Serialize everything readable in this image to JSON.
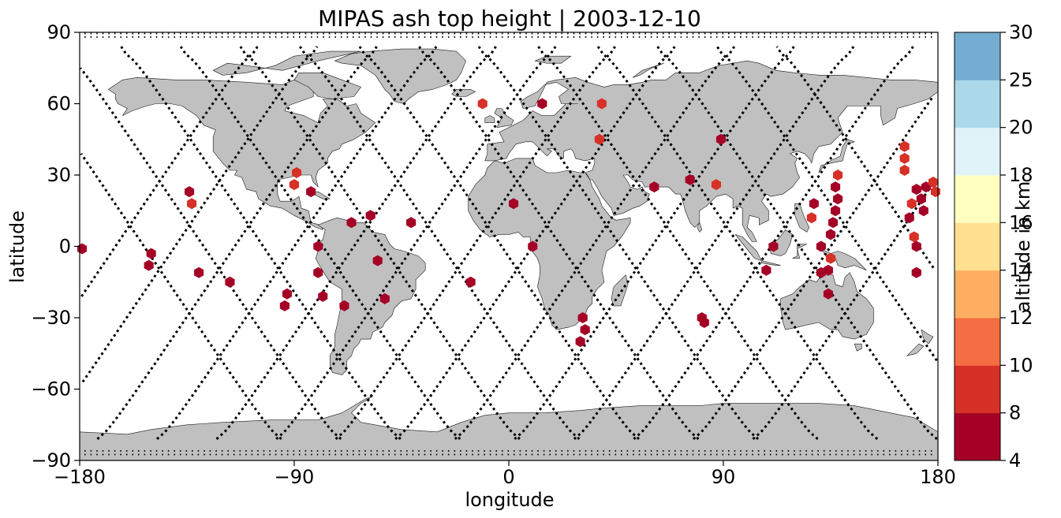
{
  "chart_data": {
    "type": "scatter",
    "title": "MIPAS ash top height | 2003-12-10",
    "xlabel": "longitude",
    "ylabel": "latitude",
    "xlim": [
      -180,
      180
    ],
    "ylim": [
      -90,
      90
    ],
    "xticks": [
      -180,
      -90,
      0,
      90,
      180
    ],
    "yticks": [
      -90,
      -60,
      -30,
      0,
      30,
      60,
      90
    ],
    "xtick_labels": [
      "−180",
      "−90",
      "0",
      "90",
      "180"
    ],
    "ytick_labels": [
      "−90",
      "−60",
      "−30",
      "0",
      "30",
      "60",
      "90"
    ],
    "grid": false,
    "background_map": "world land outlines (grey)",
    "colors": {
      "land": "#c0c0c0",
      "coast": "#1a1a1a",
      "track": "#000000"
    },
    "colorbar": {
      "label": "altitude in km",
      "bounds": [
        4,
        8,
        10,
        12,
        14,
        16,
        18,
        20,
        25,
        30
      ],
      "tick_labels": [
        "4",
        "8",
        "10",
        "12",
        "14",
        "16",
        "18",
        "20",
        "25",
        "30"
      ],
      "colors": [
        "#a50026",
        "#d73027",
        "#f46d43",
        "#fdae61",
        "#fee090",
        "#ffffbf",
        "#e0f3f8",
        "#abd9e9",
        "#74add1",
        "#4575b4",
        "#313695"
      ]
    },
    "series": [
      {
        "marker": "hexagon",
        "points": [
          {
            "lon": -179,
            "lat": -1,
            "alt": 7
          },
          {
            "lon": -151,
            "lat": -8,
            "alt": 7
          },
          {
            "lon": -150,
            "lat": -3,
            "alt": 7
          },
          {
            "lon": -134,
            "lat": 23,
            "alt": 7
          },
          {
            "lon": -133,
            "lat": 18,
            "alt": 9
          },
          {
            "lon": -130,
            "lat": -11,
            "alt": 7
          },
          {
            "lon": -117,
            "lat": -15,
            "alt": 7
          },
          {
            "lon": -94,
            "lat": -25,
            "alt": 7
          },
          {
            "lon": -93,
            "lat": -20,
            "alt": 7
          },
          {
            "lon": -90,
            "lat": 26,
            "alt": 9
          },
          {
            "lon": -89,
            "lat": 31,
            "alt": 9
          },
          {
            "lon": -83,
            "lat": 23,
            "alt": 7
          },
          {
            "lon": -80,
            "lat": 0,
            "alt": 7
          },
          {
            "lon": -80,
            "lat": -11,
            "alt": 7
          },
          {
            "lon": -78,
            "lat": -21,
            "alt": 7
          },
          {
            "lon": -69,
            "lat": -25,
            "alt": 7
          },
          {
            "lon": -66,
            "lat": 10,
            "alt": 7
          },
          {
            "lon": -58,
            "lat": 13,
            "alt": 7
          },
          {
            "lon": -55,
            "lat": -6,
            "alt": 7
          },
          {
            "lon": -52,
            "lat": -22,
            "alt": 7
          },
          {
            "lon": -41,
            "lat": 10,
            "alt": 7
          },
          {
            "lon": -16,
            "lat": -15,
            "alt": 7
          },
          {
            "lon": -11,
            "lat": 60,
            "alt": 9
          },
          {
            "lon": 2,
            "lat": 18,
            "alt": 7
          },
          {
            "lon": 10,
            "lat": 0,
            "alt": 7
          },
          {
            "lon": 14,
            "lat": 60,
            "alt": 7
          },
          {
            "lon": 31,
            "lat": -30,
            "alt": 7
          },
          {
            "lon": 32,
            "lat": -35,
            "alt": 7
          },
          {
            "lon": 30,
            "lat": -40,
            "alt": 7
          },
          {
            "lon": 38,
            "lat": 45,
            "alt": 9
          },
          {
            "lon": 39,
            "lat": 60,
            "alt": 9
          },
          {
            "lon": 61,
            "lat": 25,
            "alt": 7
          },
          {
            "lon": 76,
            "lat": 28,
            "alt": 7
          },
          {
            "lon": 81,
            "lat": -30,
            "alt": 7
          },
          {
            "lon": 82,
            "lat": -32,
            "alt": 7
          },
          {
            "lon": 87,
            "lat": 26,
            "alt": 9
          },
          {
            "lon": 89,
            "lat": 45,
            "alt": 7
          },
          {
            "lon": 111,
            "lat": 0,
            "alt": 7
          },
          {
            "lon": 108,
            "lat": -10,
            "alt": 7
          },
          {
            "lon": 127,
            "lat": 12,
            "alt": 9
          },
          {
            "lon": 128,
            "lat": 18,
            "alt": 7
          },
          {
            "lon": 131,
            "lat": 0,
            "alt": 7
          },
          {
            "lon": 131,
            "lat": -11,
            "alt": 7
          },
          {
            "lon": 134,
            "lat": -10,
            "alt": 7
          },
          {
            "lon": 134,
            "lat": -20,
            "alt": 7
          },
          {
            "lon": 135,
            "lat": -5,
            "alt": 9
          },
          {
            "lon": 135,
            "lat": 5,
            "alt": 7
          },
          {
            "lon": 136,
            "lat": 10,
            "alt": 7
          },
          {
            "lon": 137,
            "lat": 15,
            "alt": 7
          },
          {
            "lon": 137,
            "lat": 25,
            "alt": 7
          },
          {
            "lon": 138,
            "lat": 20,
            "alt": 7
          },
          {
            "lon": 138,
            "lat": 30,
            "alt": 9
          },
          {
            "lon": 166,
            "lat": 42,
            "alt": 9
          },
          {
            "lon": 166,
            "lat": 37,
            "alt": 9
          },
          {
            "lon": 166,
            "lat": 32,
            "alt": 9
          },
          {
            "lon": 168,
            "lat": 12,
            "alt": 7
          },
          {
            "lon": 169,
            "lat": 18,
            "alt": 9
          },
          {
            "lon": 170,
            "lat": 4,
            "alt": 9
          },
          {
            "lon": 171,
            "lat": 0,
            "alt": 7
          },
          {
            "lon": 171,
            "lat": -11,
            "alt": 7
          },
          {
            "lon": 171,
            "lat": 24,
            "alt": 7
          },
          {
            "lon": 173,
            "lat": 20,
            "alt": 7
          },
          {
            "lon": 174,
            "lat": 15,
            "alt": 7
          },
          {
            "lon": 175,
            "lat": 25,
            "alt": 7
          },
          {
            "lon": 178,
            "lat": 27,
            "alt": 9
          },
          {
            "lon": 179,
            "lat": 23,
            "alt": 9
          }
        ]
      }
    ]
  }
}
